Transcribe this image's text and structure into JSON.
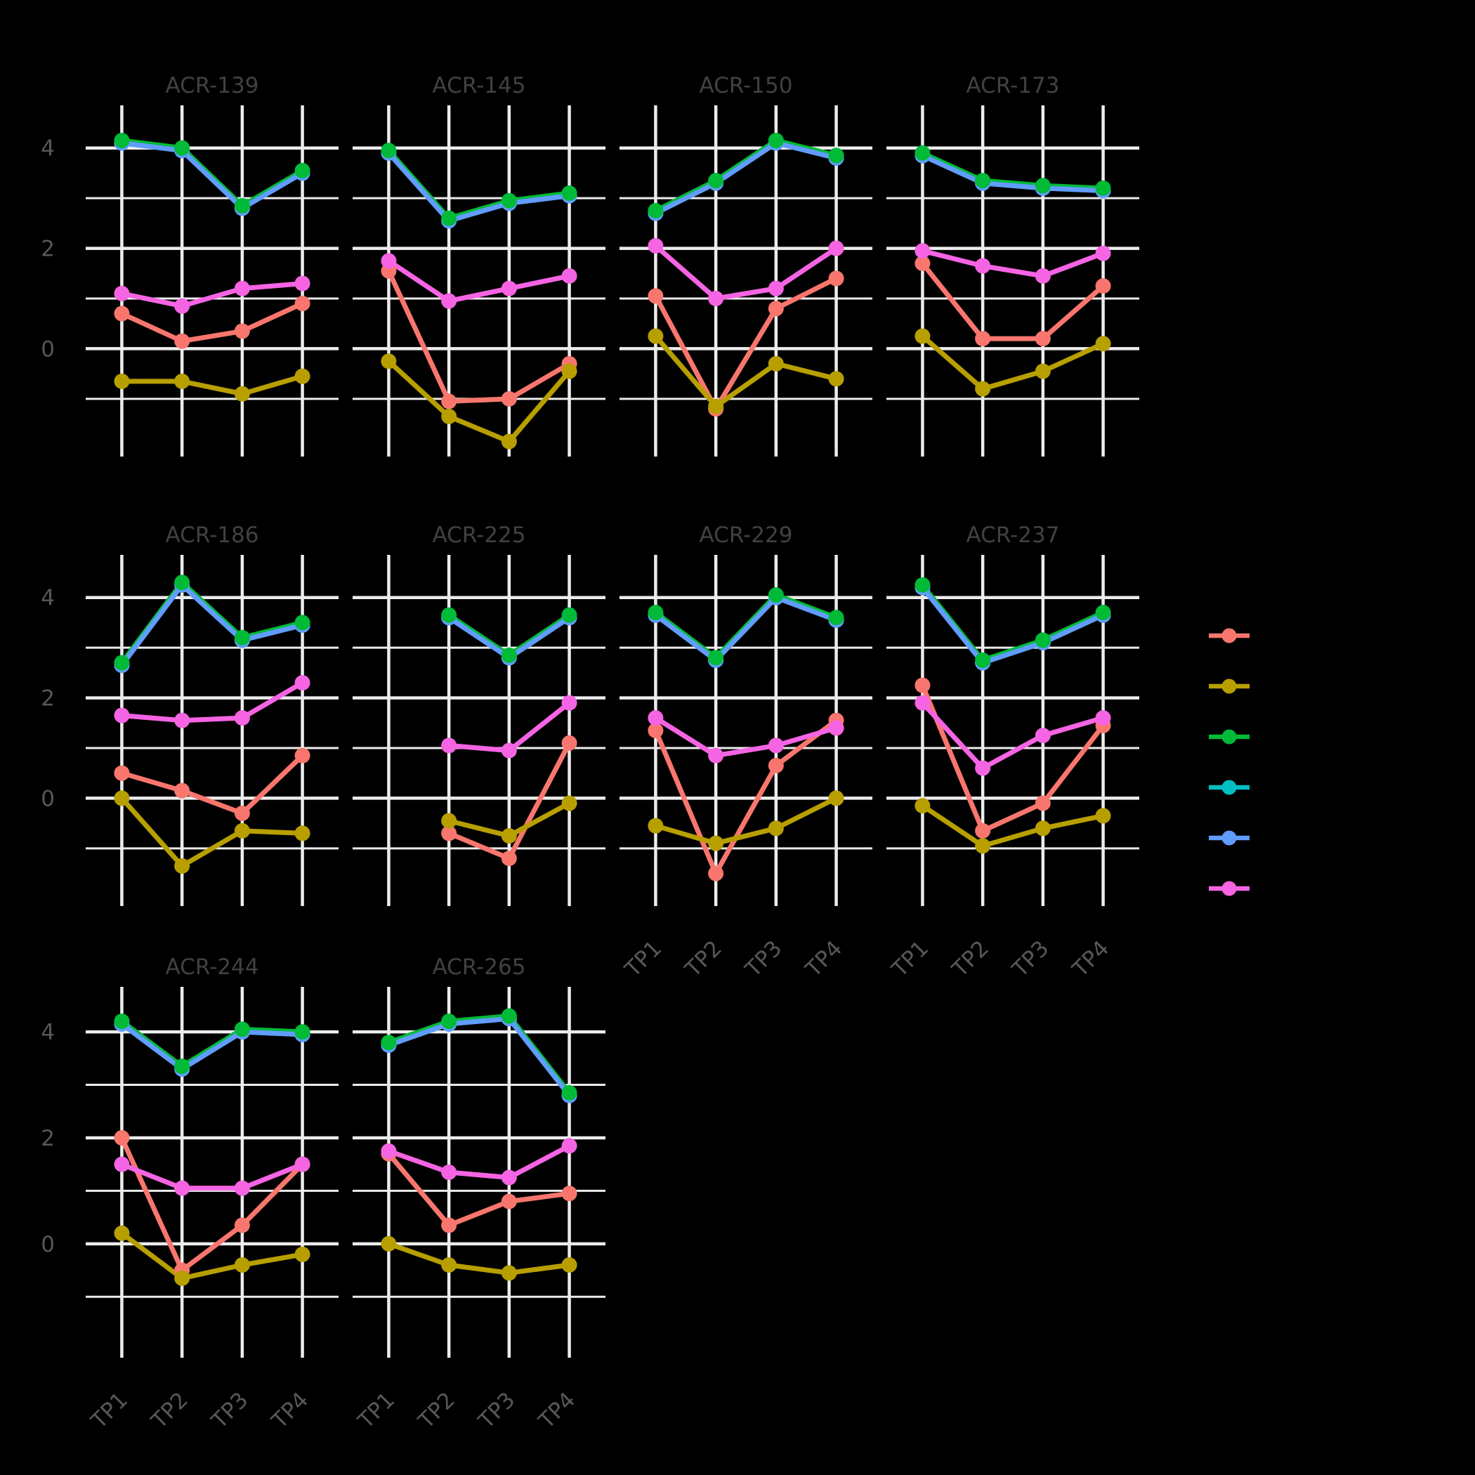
{
  "page": {
    "background": "#000000",
    "grid_color": "#ECECEC",
    "title_color": "#414141",
    "axis_text_color": "#575757"
  },
  "legend": {
    "position": "right",
    "items": [
      {
        "name": "series-salmon",
        "color": "#F8766D",
        "label": ""
      },
      {
        "name": "series-olive",
        "color": "#B79F00",
        "label": ""
      },
      {
        "name": "series-green",
        "color": "#00BA38",
        "label": ""
      },
      {
        "name": "series-teal",
        "color": "#00BFC4",
        "label": ""
      },
      {
        "name": "series-blue",
        "color": "#619CFF",
        "label": ""
      },
      {
        "name": "series-magenta",
        "color": "#F564E3",
        "label": ""
      }
    ]
  },
  "chart_data": {
    "type": "line",
    "faceted": true,
    "title": "",
    "xlabel": "",
    "ylabel": "",
    "grid": "on",
    "legend_position": "right",
    "x_categories": [
      "TP1",
      "TP2",
      "TP3",
      "TP4"
    ],
    "y_ticks": [
      4,
      2,
      0
    ],
    "y_minor_ticks": [
      3,
      1,
      -1
    ],
    "y_range": [
      -2.15,
      4.85
    ],
    "series": [
      {
        "key": "salmon",
        "color": "#F8766D",
        "label": ""
      },
      {
        "key": "olive",
        "color": "#B79F00",
        "label": ""
      },
      {
        "key": "green",
        "color": "#00BA38",
        "label": ""
      },
      {
        "key": "teal",
        "color": "#00BFC4",
        "label": ""
      },
      {
        "key": "blue",
        "color": "#619CFF",
        "label": ""
      },
      {
        "key": "magenta",
        "color": "#F564E3",
        "label": ""
      }
    ],
    "facets": [
      {
        "title": "ACR-139",
        "values": {
          "salmon": [
            0.7,
            0.15,
            0.35,
            0.9
          ],
          "olive": [
            -0.65,
            -0.65,
            -0.9,
            -0.55
          ],
          "green": [
            4.15,
            4.0,
            2.85,
            3.55
          ],
          "teal": [
            4.1,
            3.95,
            2.8,
            3.5
          ],
          "blue": [
            4.1,
            3.95,
            2.8,
            3.5
          ],
          "magenta": [
            1.1,
            0.85,
            1.2,
            1.3
          ]
        }
      },
      {
        "title": "ACR-145",
        "values": {
          "salmon": [
            1.55,
            -1.05,
            -1.0,
            -0.3
          ],
          "olive": [
            -0.25,
            -1.35,
            -1.85,
            -0.45
          ],
          "green": [
            3.95,
            2.6,
            2.95,
            3.1
          ],
          "teal": [
            3.9,
            2.55,
            2.9,
            3.05
          ],
          "blue": [
            3.9,
            2.55,
            2.9,
            3.05
          ],
          "magenta": [
            1.75,
            0.95,
            1.2,
            1.45
          ]
        }
      },
      {
        "title": "ACR-150",
        "values": {
          "salmon": [
            1.05,
            -1.2,
            0.8,
            1.4
          ],
          "olive": [
            0.25,
            -1.15,
            -0.3,
            -0.6
          ],
          "green": [
            2.75,
            3.35,
            4.15,
            3.85
          ],
          "teal": [
            2.7,
            3.3,
            4.1,
            3.8
          ],
          "blue": [
            2.7,
            3.3,
            4.1,
            3.8
          ],
          "magenta": [
            2.05,
            1.0,
            1.2,
            2.0
          ]
        }
      },
      {
        "title": "ACR-173",
        "values": {
          "salmon": [
            1.7,
            0.2,
            0.2,
            1.25
          ],
          "olive": [
            0.25,
            -0.8,
            -0.45,
            0.1
          ],
          "green": [
            3.9,
            3.35,
            3.25,
            3.2
          ],
          "teal": [
            3.85,
            3.3,
            3.2,
            3.15
          ],
          "blue": [
            3.85,
            3.3,
            3.2,
            3.15
          ],
          "magenta": [
            1.95,
            1.65,
            1.45,
            1.9
          ]
        }
      },
      {
        "title": "ACR-186",
        "values": {
          "salmon": [
            0.5,
            0.15,
            -0.3,
            0.85
          ],
          "olive": [
            0.0,
            -1.35,
            -0.65,
            -0.7
          ],
          "green": [
            2.7,
            4.3,
            3.2,
            3.5
          ],
          "teal": [
            2.65,
            4.25,
            3.15,
            3.45
          ],
          "blue": [
            2.65,
            4.25,
            3.15,
            3.45
          ],
          "magenta": [
            1.65,
            1.55,
            1.6,
            2.3
          ]
        }
      },
      {
        "title": "ACR-225",
        "values": {
          "salmon": [
            null,
            -0.7,
            -1.2,
            1.1
          ],
          "olive": [
            null,
            -0.45,
            -0.75,
            -0.1
          ],
          "green": [
            null,
            3.65,
            2.85,
            3.65
          ],
          "teal": [
            null,
            3.6,
            2.8,
            3.6
          ],
          "blue": [
            null,
            3.6,
            2.8,
            3.6
          ],
          "magenta": [
            null,
            1.05,
            0.95,
            1.9
          ]
        }
      },
      {
        "title": "ACR-229",
        "values": {
          "salmon": [
            1.35,
            -1.5,
            0.65,
            1.55
          ],
          "olive": [
            -0.55,
            -0.9,
            -0.6,
            0.0
          ],
          "green": [
            3.7,
            2.8,
            4.05,
            3.6
          ],
          "teal": [
            3.65,
            2.75,
            4.0,
            3.55
          ],
          "blue": [
            3.65,
            2.75,
            4.0,
            3.55
          ],
          "magenta": [
            1.6,
            0.85,
            1.05,
            1.4
          ]
        }
      },
      {
        "title": "ACR-237",
        "values": {
          "salmon": [
            2.25,
            -0.65,
            -0.1,
            1.45
          ],
          "olive": [
            -0.15,
            -0.95,
            -0.6,
            -0.35
          ],
          "green": [
            4.25,
            2.75,
            3.15,
            3.7
          ],
          "teal": [
            4.2,
            2.7,
            3.1,
            3.65
          ],
          "blue": [
            4.2,
            2.7,
            3.1,
            3.65
          ],
          "magenta": [
            1.9,
            0.6,
            1.25,
            1.6
          ]
        }
      },
      {
        "title": "ACR-244",
        "values": {
          "salmon": [
            2.0,
            -0.5,
            0.35,
            1.5
          ],
          "olive": [
            0.2,
            -0.65,
            -0.4,
            -0.2
          ],
          "green": [
            4.2,
            3.35,
            4.05,
            4.0
          ],
          "teal": [
            4.15,
            3.3,
            4.0,
            3.95
          ],
          "blue": [
            4.15,
            3.3,
            4.0,
            3.95
          ],
          "magenta": [
            1.5,
            1.05,
            1.05,
            1.5
          ]
        }
      },
      {
        "title": "ACR-265",
        "values": {
          "salmon": [
            1.7,
            0.35,
            0.8,
            0.95
          ],
          "olive": [
            0.0,
            -0.4,
            -0.55,
            -0.4
          ],
          "green": [
            3.8,
            4.2,
            4.3,
            2.85
          ],
          "teal": [
            3.75,
            4.15,
            4.25,
            2.8
          ],
          "blue": [
            3.75,
            4.15,
            4.25,
            2.8
          ],
          "magenta": [
            1.75,
            1.35,
            1.25,
            1.85
          ]
        }
      }
    ]
  }
}
